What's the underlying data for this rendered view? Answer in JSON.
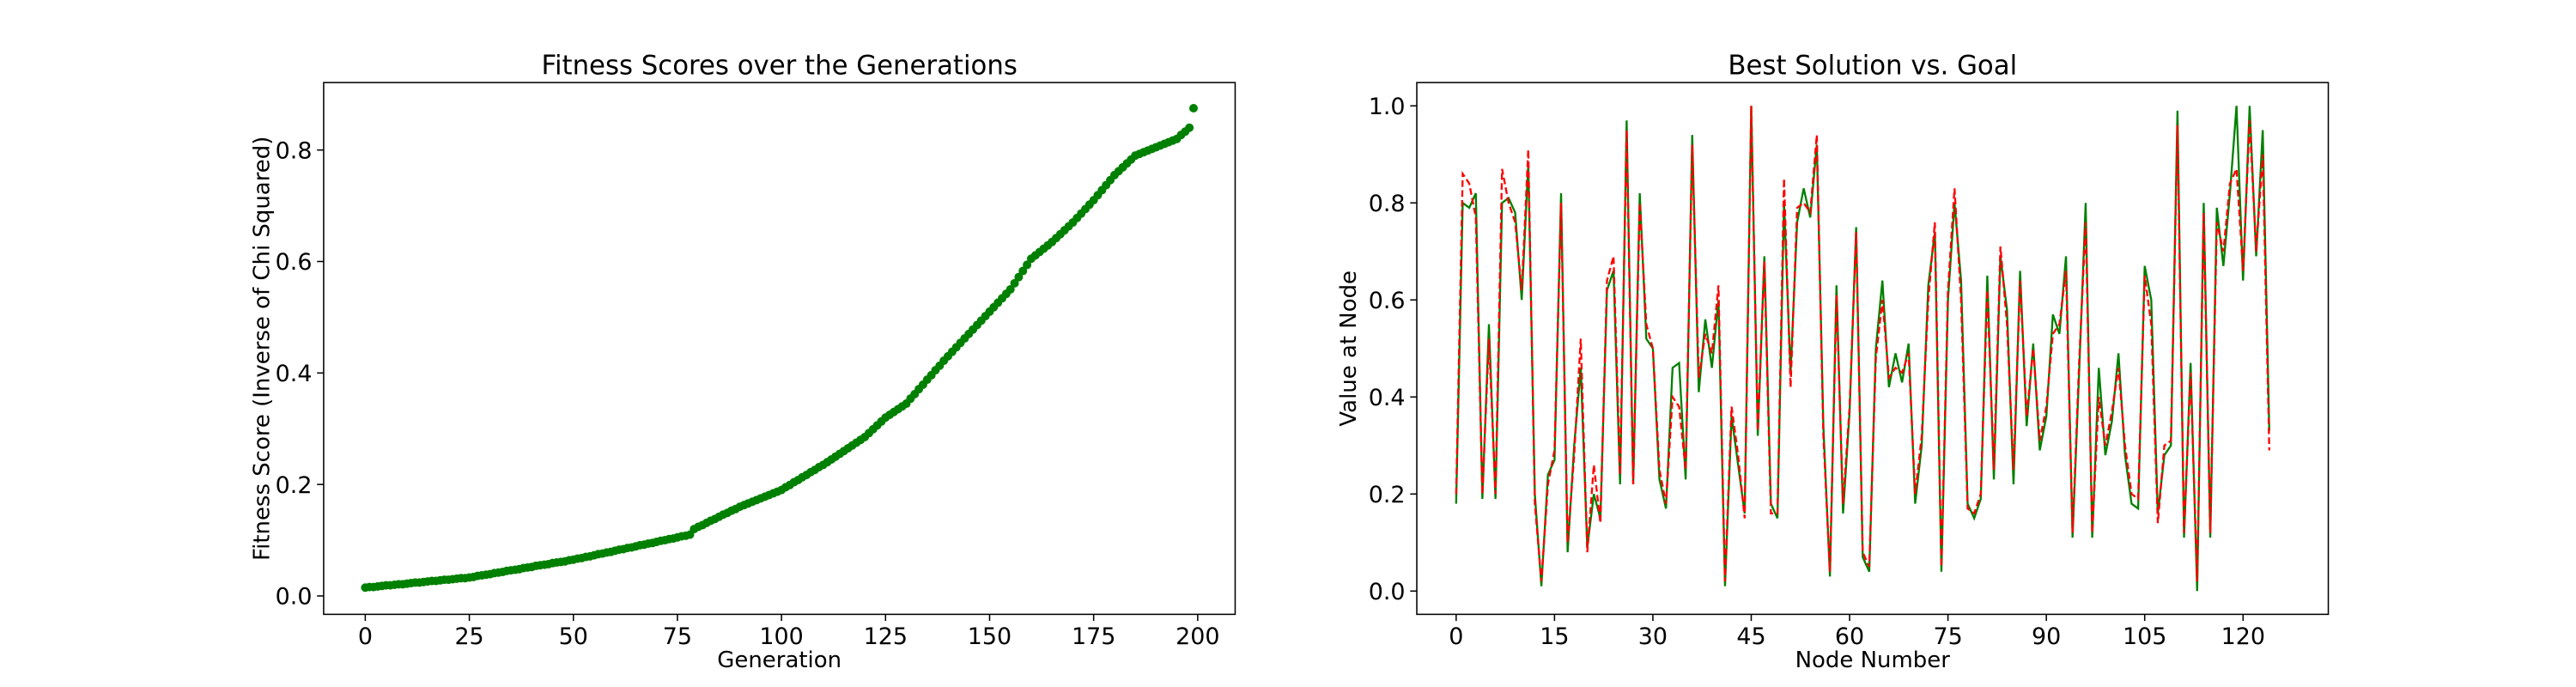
{
  "chart_data": [
    {
      "type": "scatter",
      "title": "Fitness Scores over the Generations",
      "x_label": "Generation",
      "y_label": "Fitness Score (Inverse of Chi Squared)",
      "color": "#008000",
      "x": [
        0,
        1,
        2,
        3,
        4,
        5,
        6,
        7,
        8,
        9,
        10,
        11,
        12,
        13,
        14,
        15,
        16,
        17,
        18,
        19,
        20,
        21,
        22,
        23,
        24,
        25,
        26,
        27,
        28,
        29,
        30,
        31,
        32,
        33,
        34,
        35,
        36,
        37,
        38,
        39,
        40,
        41,
        42,
        43,
        44,
        45,
        46,
        47,
        48,
        49,
        50,
        51,
        52,
        53,
        54,
        55,
        56,
        57,
        58,
        59,
        60,
        61,
        62,
        63,
        64,
        65,
        66,
        67,
        68,
        69,
        70,
        71,
        72,
        73,
        74,
        75,
        76,
        77,
        78,
        79,
        80,
        81,
        82,
        83,
        84,
        85,
        86,
        87,
        88,
        89,
        90,
        91,
        92,
        93,
        94,
        95,
        96,
        97,
        98,
        99,
        100,
        101,
        102,
        103,
        104,
        105,
        106,
        107,
        108,
        109,
        110,
        111,
        112,
        113,
        114,
        115,
        116,
        117,
        118,
        119,
        120,
        121,
        122,
        123,
        124,
        125,
        126,
        127,
        128,
        129,
        130,
        131,
        132,
        133,
        134,
        135,
        136,
        137,
        138,
        139,
        140,
        141,
        142,
        143,
        144,
        145,
        146,
        147,
        148,
        149,
        150,
        151,
        152,
        153,
        154,
        155,
        156,
        157,
        158,
        159,
        160,
        161,
        162,
        163,
        164,
        165,
        166,
        167,
        168,
        169,
        170,
        171,
        172,
        173,
        174,
        175,
        176,
        177,
        178,
        179,
        180,
        181,
        182,
        183,
        184,
        185,
        186,
        187,
        188,
        189,
        190,
        191,
        192,
        193,
        194,
        195,
        196,
        197,
        198,
        199
      ],
      "y": [
        0.015,
        0.016,
        0.016,
        0.017,
        0.018,
        0.019,
        0.019,
        0.02,
        0.021,
        0.021,
        0.022,
        0.023,
        0.024,
        0.024,
        0.025,
        0.026,
        0.027,
        0.027,
        0.028,
        0.029,
        0.029,
        0.03,
        0.031,
        0.032,
        0.032,
        0.033,
        0.034,
        0.036,
        0.037,
        0.038,
        0.039,
        0.041,
        0.042,
        0.043,
        0.045,
        0.046,
        0.047,
        0.048,
        0.05,
        0.051,
        0.052,
        0.054,
        0.055,
        0.056,
        0.057,
        0.059,
        0.06,
        0.061,
        0.062,
        0.064,
        0.065,
        0.067,
        0.068,
        0.07,
        0.071,
        0.073,
        0.075,
        0.076,
        0.078,
        0.079,
        0.081,
        0.083,
        0.084,
        0.086,
        0.087,
        0.089,
        0.091,
        0.092,
        0.094,
        0.095,
        0.097,
        0.099,
        0.1,
        0.102,
        0.103,
        0.105,
        0.107,
        0.108,
        0.11,
        0.12,
        0.124,
        0.127,
        0.131,
        0.135,
        0.138,
        0.142,
        0.146,
        0.149,
        0.153,
        0.156,
        0.16,
        0.163,
        0.166,
        0.169,
        0.172,
        0.175,
        0.178,
        0.181,
        0.184,
        0.187,
        0.19,
        0.195,
        0.199,
        0.204,
        0.208,
        0.213,
        0.217,
        0.222,
        0.226,
        0.231,
        0.235,
        0.24,
        0.245,
        0.25,
        0.255,
        0.26,
        0.265,
        0.27,
        0.275,
        0.28,
        0.285,
        0.292,
        0.299,
        0.306,
        0.313,
        0.32,
        0.325,
        0.33,
        0.335,
        0.34,
        0.345,
        0.354,
        0.362,
        0.371,
        0.379,
        0.388,
        0.396,
        0.405,
        0.413,
        0.422,
        0.43,
        0.438,
        0.446,
        0.454,
        0.462,
        0.47,
        0.478,
        0.486,
        0.494,
        0.502,
        0.51,
        0.518,
        0.526,
        0.534,
        0.542,
        0.55,
        0.561,
        0.572,
        0.583,
        0.594,
        0.605,
        0.611,
        0.617,
        0.623,
        0.629,
        0.635,
        0.642,
        0.649,
        0.656,
        0.663,
        0.67,
        0.678,
        0.686,
        0.694,
        0.702,
        0.71,
        0.719,
        0.728,
        0.737,
        0.746,
        0.755,
        0.762,
        0.769,
        0.776,
        0.783,
        0.79,
        0.793,
        0.796,
        0.799,
        0.802,
        0.805,
        0.808,
        0.811,
        0.814,
        0.817,
        0.82,
        0.827,
        0.833,
        0.84,
        0.875
      ],
      "xlim": [
        -10,
        209
      ],
      "ylim": [
        -0.033,
        0.921
      ],
      "xticks": [
        0,
        25,
        50,
        75,
        100,
        125,
        150,
        175,
        200
      ],
      "yticks": [
        {
          "value": 0,
          "label": "0.0"
        },
        0.2,
        0.4,
        0.6,
        0.8
      ]
    },
    {
      "type": "line",
      "title": "Best Solution vs. Goal",
      "x_label": "Node Number",
      "y_label": "Value at Node",
      "x": [
        0,
        1,
        2,
        3,
        4,
        5,
        6,
        7,
        8,
        9,
        10,
        11,
        12,
        13,
        14,
        15,
        16,
        17,
        18,
        19,
        20,
        21,
        22,
        23,
        24,
        25,
        26,
        27,
        28,
        29,
        30,
        31,
        32,
        33,
        34,
        35,
        36,
        37,
        38,
        39,
        40,
        41,
        42,
        43,
        44,
        45,
        46,
        47,
        48,
        49,
        50,
        51,
        52,
        53,
        54,
        55,
        56,
        57,
        58,
        59,
        60,
        61,
        62,
        63,
        64,
        65,
        66,
        67,
        68,
        69,
        70,
        71,
        72,
        73,
        74,
        75,
        76,
        77,
        78,
        79,
        80,
        81,
        82,
        83,
        84,
        85,
        86,
        87,
        88,
        89,
        90,
        91,
        92,
        93,
        94,
        95,
        96,
        97,
        98,
        99,
        100,
        101,
        102,
        103,
        104,
        105,
        106,
        107,
        108,
        109,
        110,
        111,
        112,
        113,
        114,
        115,
        116,
        117,
        118,
        119,
        120,
        121,
        122,
        123,
        124
      ],
      "series": [
        {
          "color": "#008000",
          "linestyle": "solid",
          "values": [
            0.18,
            0.8,
            0.79,
            0.82,
            0.19,
            0.55,
            0.19,
            0.8,
            0.81,
            0.78,
            0.6,
            0.88,
            0.2,
            0.01,
            0.24,
            0.27,
            0.82,
            0.08,
            0.3,
            0.46,
            0.09,
            0.2,
            0.15,
            0.62,
            0.66,
            0.22,
            0.97,
            0.22,
            0.82,
            0.52,
            0.5,
            0.23,
            0.17,
            0.46,
            0.47,
            0.23,
            0.94,
            0.41,
            0.56,
            0.46,
            0.6,
            0.01,
            0.36,
            0.26,
            0.16,
            1.0,
            0.32,
            0.69,
            0.18,
            0.15,
            0.8,
            0.45,
            0.76,
            0.83,
            0.77,
            0.92,
            0.34,
            0.03,
            0.63,
            0.16,
            0.37,
            0.75,
            0.07,
            0.04,
            0.5,
            0.64,
            0.42,
            0.49,
            0.43,
            0.51,
            0.18,
            0.3,
            0.63,
            0.74,
            0.04,
            0.6,
            0.8,
            0.64,
            0.18,
            0.15,
            0.19,
            0.65,
            0.23,
            0.69,
            0.58,
            0.22,
            0.66,
            0.34,
            0.51,
            0.29,
            0.36,
            0.57,
            0.53,
            0.69,
            0.11,
            0.45,
            0.8,
            0.11,
            0.46,
            0.28,
            0.35,
            0.49,
            0.28,
            0.18,
            0.17,
            0.67,
            0.6,
            0.16,
            0.28,
            0.3,
            0.99,
            0.11,
            0.47,
            0.0,
            0.8,
            0.11,
            0.79,
            0.67,
            0.82,
            1.0,
            0.64,
            1.0,
            0.69,
            0.95,
            0.33
          ]
        },
        {
          "color": "#ff0000",
          "linestyle": "dashed",
          "values": [
            0.2,
            0.86,
            0.84,
            0.77,
            0.2,
            0.52,
            0.2,
            0.87,
            0.8,
            0.76,
            0.62,
            0.91,
            0.18,
            0.02,
            0.22,
            0.29,
            0.8,
            0.1,
            0.28,
            0.52,
            0.08,
            0.26,
            0.14,
            0.64,
            0.69,
            0.24,
            0.95,
            0.22,
            0.8,
            0.55,
            0.5,
            0.25,
            0.18,
            0.4,
            0.38,
            0.25,
            0.92,
            0.44,
            0.53,
            0.49,
            0.63,
            0.02,
            0.38,
            0.28,
            0.15,
            1.0,
            0.33,
            0.68,
            0.16,
            0.16,
            0.85,
            0.42,
            0.79,
            0.8,
            0.78,
            0.94,
            0.32,
            0.04,
            0.61,
            0.18,
            0.38,
            0.74,
            0.08,
            0.05,
            0.48,
            0.6,
            0.44,
            0.46,
            0.45,
            0.49,
            0.2,
            0.32,
            0.6,
            0.76,
            0.05,
            0.62,
            0.83,
            0.6,
            0.17,
            0.16,
            0.2,
            0.62,
            0.25,
            0.71,
            0.55,
            0.25,
            0.64,
            0.36,
            0.5,
            0.31,
            0.38,
            0.53,
            0.55,
            0.66,
            0.12,
            0.47,
            0.76,
            0.12,
            0.4,
            0.3,
            0.37,
            0.46,
            0.3,
            0.2,
            0.19,
            0.65,
            0.55,
            0.14,
            0.3,
            0.31,
            0.96,
            0.12,
            0.45,
            0.02,
            0.78,
            0.12,
            0.76,
            0.7,
            0.84,
            0.87,
            0.66,
            0.97,
            0.7,
            0.9,
            0.29
          ]
        }
      ],
      "xlim": [
        -6,
        133
      ],
      "ylim": [
        -0.048,
        1.048
      ],
      "xticks": [
        0,
        15,
        30,
        45,
        60,
        75,
        90,
        105,
        120
      ],
      "yticks": [
        {
          "value": 0,
          "label": "0.0"
        },
        0.2,
        0.4,
        0.6,
        0.8,
        {
          "value": 1,
          "label": "1.0"
        }
      ]
    }
  ]
}
